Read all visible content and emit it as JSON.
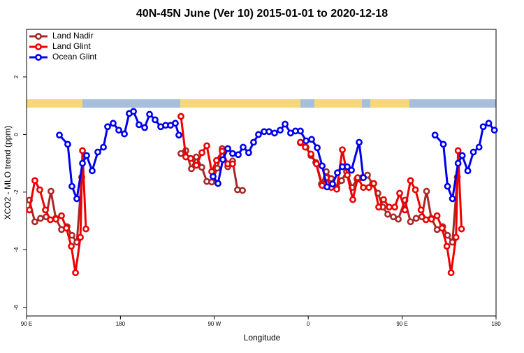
{
  "chart_data": {
    "type": "line",
    "title": "40N-45N June (Ver 10)   2015-01-01 to 2020-12-18",
    "x_label": "Longitude",
    "y_label": "XCO2 - MLO trend (ppm)",
    "xlim": [
      90,
      540
    ],
    "ylim": [
      -6.3,
      3.65
    ],
    "xticks": [
      {
        "value": 90,
        "label": "90 E"
      },
      180,
      {
        "value": 270,
        "label": "90 W"
      },
      {
        "value": 360,
        "label": "0"
      },
      {
        "value": 450,
        "label": "90 E"
      },
      {
        "value": 540,
        "label": "180"
      }
    ],
    "yticks": [
      -6,
      -4,
      -2,
      0,
      2
    ],
    "legend": "top-left",
    "series": [
      {
        "name": "Land Nadir",
        "color": "#a52a2a",
        "x": [
          92.7,
          98.0,
          103.4,
          108.8,
          113.4,
          118.0,
          123.5,
          128.8,
          133.5,
          138.2,
          142.9,
          null,
          238.0,
          242.7,
          248.0,
          252.7,
          258.0,
          262.8,
          267.5,
          272.8,
          277.5,
          282.9,
          287.5,
          292.2,
          297.0,
          null,
          352.5,
          357.9,
          362.6,
          367.2,
          372.6,
          377.3,
          382.0,
          387.3,
          392.0,
          396.7,
          402.0,
          406.7,
          411.4,
          416.8,
          421.5,
          426.8,
          431.5,
          436.2,
          441.6,
          446.3,
          452.7,
          458.0,
          463.4,
          468.8,
          473.4,
          478.0,
          483.5,
          488.8,
          493.5,
          498.2,
          502.9
        ],
        "values": [
          -2.28,
          -3.03,
          -2.91,
          -2.86,
          -1.97,
          -2.91,
          -3.3,
          -3.2,
          -3.5,
          -3.74,
          -1.48,
          null,
          -0.66,
          -0.56,
          -1.19,
          -0.78,
          -1.14,
          -1.63,
          -1.65,
          -1.17,
          -0.49,
          -1.12,
          -0.92,
          -1.92,
          -1.94,
          null,
          -0.29,
          -0.44,
          -0.73,
          -0.97,
          -1.72,
          -1.29,
          -1.53,
          -1.84,
          -1.6,
          -1.29,
          -1.84,
          -1.55,
          -1.5,
          -1.41,
          -1.72,
          -2.04,
          -2.52,
          -2.77,
          -2.86,
          -2.94,
          -2.28,
          -3.03,
          -2.91,
          -2.86,
          -1.97,
          -2.91,
          -3.3,
          -3.2,
          -3.5,
          -3.74,
          -1.48
        ]
      },
      {
        "name": "Land Glint",
        "color": "#ee0000",
        "x": [
          92.7,
          98.0,
          102.7,
          108.1,
          112.8,
          118.1,
          123.5,
          128.2,
          132.9,
          136.9,
          141.6,
          143.6,
          146.9,
          null,
          238.0,
          242.7,
          247.4,
          252.7,
          258.1,
          262.8,
          267.5,
          272.1,
          277.5,
          282.9,
          287.5,
          null,
          352.5,
          357.2,
          362.6,
          367.9,
          373.3,
          377.3,
          382.0,
          387.3,
          392.7,
          397.4,
          402.7,
          407.4,
          412.8,
          418.1,
          422.8,
          427.5,
          432.2,
          437.6,
          442.9,
          447.6,
          452.7,
          458.0,
          462.7,
          468.1,
          472.8,
          478.1,
          483.5,
          488.2,
          492.9,
          496.9,
          501.6,
          503.6,
          506.9
        ],
        "values": [
          -2.62,
          -1.6,
          -1.92,
          -2.62,
          -2.96,
          -2.94,
          -2.82,
          -3.25,
          -3.88,
          -4.8,
          -3.57,
          -0.56,
          -3.28,
          null,
          0.63,
          -0.78,
          -0.83,
          -1.07,
          -0.63,
          -0.39,
          -1.29,
          -0.9,
          -0.58,
          -1.02,
          -1.02,
          null,
          -0.27,
          -0.44,
          -0.68,
          -1.02,
          -1.77,
          -1.5,
          -1.84,
          -1.9,
          -0.53,
          -1.41,
          -2.26,
          -1.5,
          -1.84,
          -1.84,
          -1.7,
          -2.52,
          -2.26,
          -2.52,
          -2.52,
          -2.04,
          -2.62,
          -1.6,
          -1.92,
          -2.62,
          -2.96,
          -2.94,
          -2.82,
          -3.25,
          -3.88,
          -4.8,
          -3.57,
          -0.56,
          -3.28
        ]
      },
      {
        "name": "Ocean Glint",
        "color": "#0000ee",
        "x": [
          121.5,
          129.5,
          133.5,
          138.2,
          143.6,
          147.6,
          152.9,
          158.3,
          163.7,
          167.7,
          173.0,
          178.4,
          183.8,
          188.4,
          192.5,
          197.8,
          203.2,
          207.9,
          213.2,
          218.6,
          223.3,
          228.0,
          232.6,
          236.0,
          null,
          268.8,
          273.5,
          278.2,
          282.9,
          287.5,
          292.9,
          297.6,
          302.9,
          307.6,
          312.3,
          317.7,
          322.4,
          327.7,
          333.1,
          337.8,
          343.1,
          347.8,
          352.5,
          357.9,
          363.2,
          368.6,
          373.3,
          378.0,
          383.3,
          388.0,
          392.7,
          397.4,
          401.4,
          408.8,
          412.8,
          null,
          481.5,
          489.5,
          493.5,
          498.2,
          503.6,
          507.6,
          512.9,
          518.3,
          523.7,
          527.7,
          533.0,
          538.4
        ],
        "values": [
          -0.02,
          -0.34,
          -1.8,
          -2.23,
          -1.0,
          -0.73,
          -1.26,
          -0.61,
          -0.44,
          0.27,
          0.39,
          0.15,
          0.02,
          0.73,
          0.8,
          0.34,
          0.24,
          0.7,
          0.51,
          0.27,
          0.32,
          0.32,
          0.39,
          -0.02,
          null,
          -1.46,
          -1.7,
          -0.87,
          -0.49,
          -0.66,
          -0.7,
          -0.44,
          -0.63,
          -0.27,
          0.0,
          0.1,
          0.1,
          0.05,
          0.15,
          0.36,
          0.05,
          0.12,
          0.12,
          -0.22,
          -0.17,
          -0.46,
          -1.09,
          -1.82,
          -1.72,
          -1.33,
          -1.12,
          -1.12,
          -1.24,
          -0.27,
          -1.5,
          null,
          -0.02,
          -0.34,
          -1.8,
          -2.23,
          -1.0,
          -0.73,
          -1.26,
          -0.61,
          -0.44,
          0.27,
          0.39,
          0.15
        ]
      }
    ]
  }
}
